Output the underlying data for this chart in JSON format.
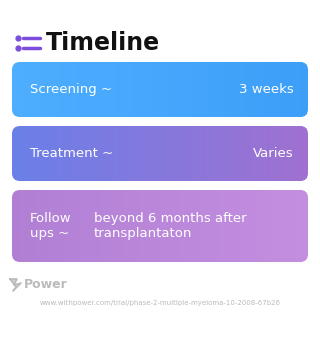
{
  "title": "Timeline",
  "title_fontsize": 17,
  "title_color": "#111111",
  "title_bold": true,
  "icon_color": "#7c4ddd",
  "background_color": "#ffffff",
  "rows": [
    {
      "label": "Screening ~",
      "value": "3 weeks",
      "bg_color_left": "#4daeff",
      "bg_color_right": "#3d9ef8",
      "text_color": "#ffffff",
      "label_fontsize": 9.5,
      "value_fontsize": 9.5
    },
    {
      "label": "Treatment ~",
      "value": "Varies",
      "bg_color_left": "#6a7fe8",
      "bg_color_right": "#a070d0",
      "text_color": "#ffffff",
      "label_fontsize": 9.5,
      "value_fontsize": 9.5
    },
    {
      "label": "Follow\nups ~",
      "value": "beyond 6 months after\ntransplantaton",
      "bg_color_left": "#b07fd4",
      "bg_color_right": "#c48ee0",
      "text_color": "#ffffff",
      "label_fontsize": 9.5,
      "value_fontsize": 9.5
    }
  ],
  "footer_logo_text": "Power",
  "footer_logo_color": "#bbbbbb",
  "footer_url": "www.withpower.com/trial/phase-2-multiple-myeloma-10-2008-67b26",
  "footer_fontsize": 5.0
}
